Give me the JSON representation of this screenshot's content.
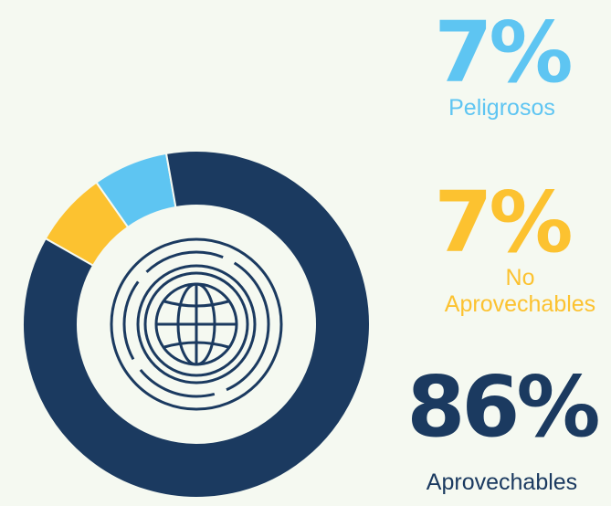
{
  "chart_data": {
    "type": "pie",
    "categories": [
      "Peligrosos",
      "No Aprovechables",
      "Aprovechables"
    ],
    "values": [
      7,
      7,
      86
    ],
    "value_labels": [
      "7%",
      "7%",
      "86%"
    ],
    "colors": [
      "#5ec5f2",
      "#fcc230",
      "#1b3a60"
    ]
  }
}
